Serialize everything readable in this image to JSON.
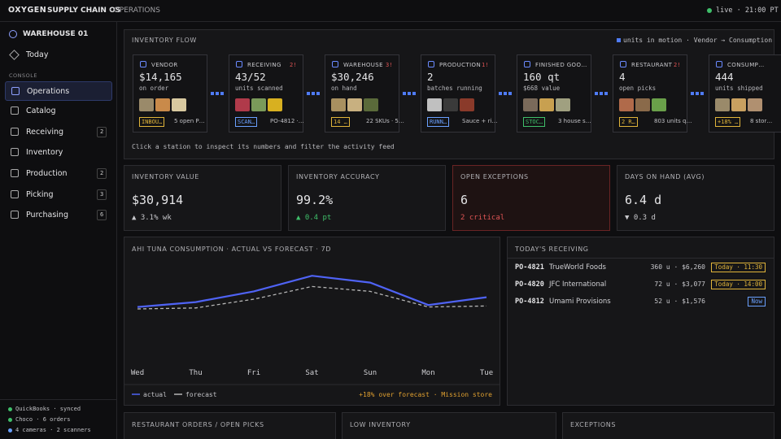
{
  "topbar": {
    "brand": "OXYGEN",
    "product": "SUPPLY CHAIN OS",
    "section": "· OPERATIONS",
    "status": "live · 21:00 PT"
  },
  "sidebar": {
    "site": "WAREHOUSE 01",
    "today": "Today",
    "group": "CONSOLE",
    "nav": [
      {
        "label": "Operations"
      },
      {
        "label": "Catalog"
      },
      {
        "label": "Receiving",
        "badge": "2"
      },
      {
        "label": "Inventory"
      },
      {
        "label": "Production",
        "badge": "2"
      },
      {
        "label": "Picking",
        "badge": "3"
      },
      {
        "label": "Purchasing",
        "badge": "6"
      }
    ],
    "integrations": [
      "QuickBooks · synced",
      "Choco · 6 orders",
      "4 cameras · 2 scanners"
    ]
  },
  "flow": {
    "title": "INVENTORY FLOW",
    "legend": "units in motion · Vendor → Consumption",
    "hint": "Click a station to inspect its numbers and filter the activity feed",
    "stations": [
      {
        "label": "VENDOR",
        "value": "$14,165",
        "caption": "on order",
        "tag": "INBOU…",
        "note": "5 open P…"
      },
      {
        "label": "RECEIVING",
        "alert": "2!",
        "value": "43/52",
        "caption": "units scanned",
        "tag": "SCAN…",
        "note": "PO-4812 ·…"
      },
      {
        "label": "WAREHOUSE",
        "alert": "3!",
        "value": "$30,246",
        "caption": "on hand",
        "tag": "14 …",
        "note": "22 SKUs · 5…"
      },
      {
        "label": "PRODUCTION",
        "alert": "1!",
        "value": "2",
        "caption": "batches running",
        "tag": "RUNN…",
        "note": "Sauce + ri…"
      },
      {
        "label": "FINISHED GOO…",
        "value": "160 qt",
        "caption": "$668 value",
        "tag": "STOC…",
        "note": "3 house s…"
      },
      {
        "label": "RESTAURANT",
        "alert": "2!",
        "value": "4",
        "caption": "open picks",
        "tag": "2 R…",
        "note": "803 units q…"
      },
      {
        "label": "CONSUMP…",
        "value": "444",
        "caption": "units shipped",
        "tag": "+18% …",
        "note": "8 stor…"
      }
    ]
  },
  "kpis": [
    {
      "label": "INVENTORY VALUE",
      "value": "$30,914",
      "delta": "▲ 3.1% wk"
    },
    {
      "label": "INVENTORY ACCURACY",
      "value": "99.2%",
      "delta": "▲ 0.4 pt"
    },
    {
      "label": "OPEN EXCEPTIONS",
      "value": "6",
      "delta": "2 critical"
    },
    {
      "label": "DAYS ON HAND (AVG)",
      "value": "6.4 d",
      "delta": "▼ 0.3 d"
    }
  ],
  "chart_data": {
    "type": "line",
    "title": "AHI TUNA CONSUMPTION · ACTUAL VS FORECAST · 7D",
    "categories": [
      "Wed",
      "Thu",
      "Fri",
      "Sat",
      "Sun",
      "Mon",
      "Tue"
    ],
    "series": [
      {
        "name": "actual",
        "color": "#4f63f5",
        "values": [
          52,
          57,
          68,
          84,
          77,
          54,
          62
        ]
      },
      {
        "name": "forecast",
        "color": "#b5b5b5",
        "values": [
          50,
          51,
          60,
          73,
          68,
          52,
          53
        ]
      }
    ],
    "ylim": [
      0,
      100
    ],
    "grid": false,
    "annotation": "+18% over forecast · Mission store"
  },
  "receiving": {
    "title": "TODAY'S RECEIVING",
    "rows": [
      [
        "PO-4821",
        "TrueWorld Foods",
        "360 u · $6,260",
        "Today · 11:30"
      ],
      [
        "PO-4820",
        "JFC International",
        "72 u · $3,077",
        "Today · 14:00"
      ],
      [
        "PO-4812",
        "Umami Provisions",
        "52 u · $1,576",
        "Now"
      ]
    ]
  },
  "bottom_panels": [
    "RESTAURANT ORDERS / OPEN PICKS",
    "LOW INVENTORY",
    "EXCEPTIONS"
  ]
}
